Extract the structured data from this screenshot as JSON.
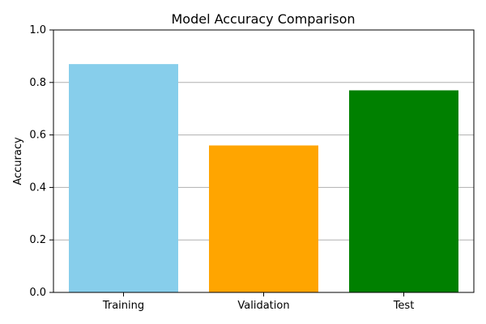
{
  "chart_data": {
    "type": "bar",
    "title": "Model Accuracy Comparison",
    "xlabel": "",
    "ylabel": "Accuracy",
    "categories": [
      "Training",
      "Validation",
      "Test"
    ],
    "values": [
      0.87,
      0.56,
      0.77
    ],
    "colors": [
      "#87ceeb",
      "#ffa500",
      "#008000"
    ],
    "ylim": [
      0,
      1
    ],
    "yticks": [
      0,
      0.2,
      0.4,
      0.6,
      0.8,
      1
    ],
    "ytick_labels": [
      "0.0",
      "0.2",
      "0.4",
      "0.6",
      "0.8",
      "1.0"
    ],
    "grid": "y-axis",
    "legend": "none"
  }
}
